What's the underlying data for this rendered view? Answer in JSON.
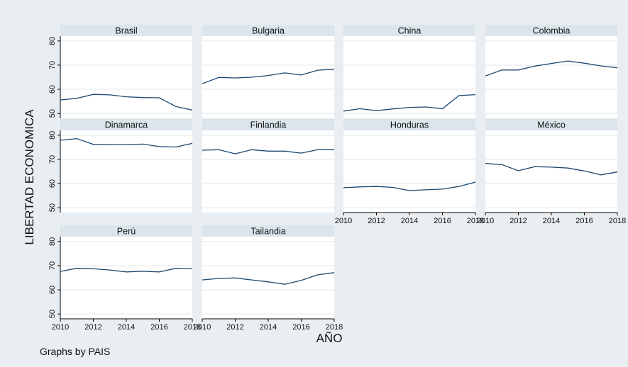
{
  "figure": {
    "ylabel": "LIBERTAD ECONOMICA",
    "xlabel": "AÑO",
    "note": "Graphs by PAIS",
    "colors": {
      "background": "#e8eef2",
      "plot": "#ffffff",
      "strip": "#dbe5eb",
      "line": "#1a476f",
      "grid": "#e0e6ea",
      "text": "#111111"
    }
  },
  "chart_data": {
    "type": "line",
    "x_ticks": [
      "2010",
      "2012",
      "2014",
      "2016",
      "2018"
    ],
    "y_ticks": [
      "50",
      "60",
      "70",
      "80"
    ],
    "xlim": [
      2010,
      2018
    ],
    "ylim": [
      48,
      82
    ],
    "grid": true,
    "x": [
      2010,
      2011,
      2012,
      2013,
      2014,
      2015,
      2016,
      2017,
      2018
    ],
    "panels": [
      {
        "title": "Brasil",
        "values": [
          55.6,
          56.3,
          57.9,
          57.7,
          56.9,
          56.6,
          56.5,
          52.9,
          51.4
        ]
      },
      {
        "title": "Bulgaria",
        "values": [
          62.3,
          64.9,
          64.7,
          65.0,
          65.7,
          66.8,
          65.9,
          67.9,
          68.3
        ]
      },
      {
        "title": "China",
        "values": [
          51.0,
          52.0,
          51.2,
          51.9,
          52.5,
          52.7,
          52.0,
          57.4,
          57.8
        ]
      },
      {
        "title": "Colombia",
        "values": [
          65.5,
          68.0,
          68.0,
          69.6,
          70.7,
          71.7,
          70.8,
          69.7,
          68.9
        ]
      },
      {
        "title": "Dinamarca",
        "values": [
          77.9,
          78.6,
          76.2,
          76.1,
          76.1,
          76.3,
          75.3,
          75.1,
          76.6
        ]
      },
      {
        "title": "Finlandia",
        "values": [
          73.8,
          74.0,
          72.3,
          74.0,
          73.4,
          73.4,
          72.6,
          74.0,
          74.0
        ]
      },
      {
        "title": "Honduras",
        "values": [
          58.3,
          58.6,
          58.8,
          58.4,
          57.1,
          57.4,
          57.7,
          58.8,
          60.6
        ]
      },
      {
        "title": "México",
        "values": [
          68.3,
          67.8,
          65.3,
          67.0,
          66.8,
          66.4,
          65.2,
          63.6,
          64.8
        ]
      },
      {
        "title": "Perú",
        "values": [
          67.6,
          68.9,
          68.7,
          68.2,
          67.4,
          67.7,
          67.4,
          68.9,
          68.7
        ]
      },
      {
        "title": "Tailandia",
        "values": [
          64.1,
          64.7,
          64.9,
          64.1,
          63.3,
          62.3,
          63.9,
          66.2,
          67.1
        ]
      }
    ]
  }
}
